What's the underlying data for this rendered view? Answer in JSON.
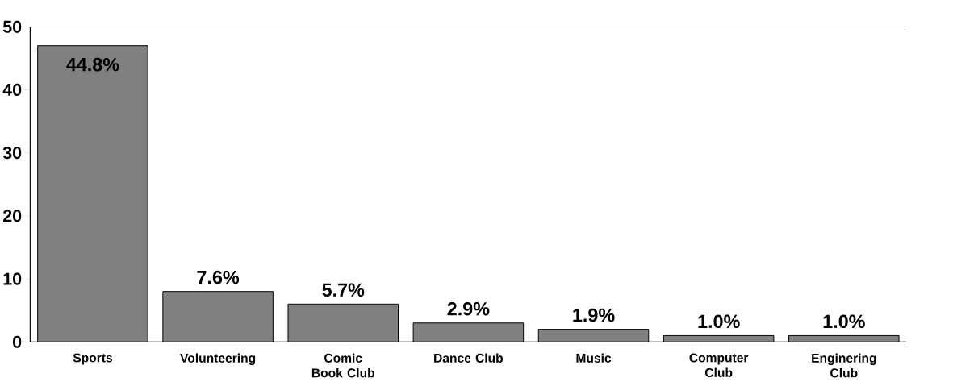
{
  "chart_data": {
    "type": "bar",
    "categories": [
      "Sports",
      "Volunteering",
      "Comic Book Club",
      "Dance Club",
      "Music",
      "Computer Club",
      "Enginering Club"
    ],
    "values": [
      47,
      8,
      6,
      3,
      2,
      1,
      1
    ],
    "annotations": [
      {
        "text": "44.8%",
        "x": "Sports",
        "y": 47
      },
      {
        "text": "7.6%",
        "x": "Volunteering",
        "y": 8
      },
      {
        "text": "5.7%",
        "x": "Comic Book Club",
        "y": 6
      },
      {
        "text": "2.9%",
        "x": "Dance Club",
        "y": 3
      },
      {
        "text": "1.9%",
        "x": "Music",
        "y": 2
      },
      {
        "text": "1.0%",
        "x": "Computer Club",
        "y": 1
      },
      {
        "text": "1.0%",
        "x": "Enginering Club",
        "y": 1
      }
    ],
    "color": "#808080",
    "ylim": [
      0,
      50
    ],
    "yticks": [
      0,
      10,
      20,
      30,
      40,
      50
    ]
  }
}
